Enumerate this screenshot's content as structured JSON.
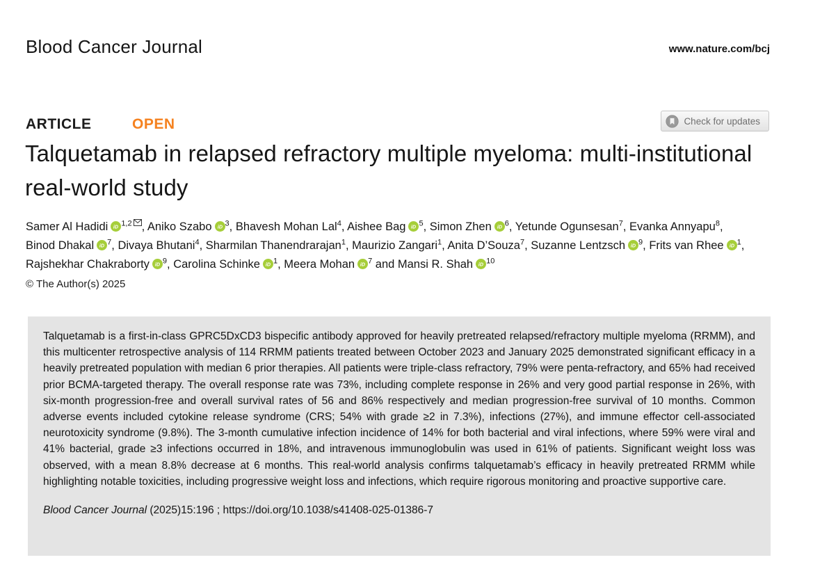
{
  "header": {
    "journal_name": "Blood Cancer Journal",
    "journal_url": "www.nature.com/bcj"
  },
  "article": {
    "type_label": "ARTICLE",
    "open_label": "OPEN",
    "check_updates_label": "Check for updates",
    "title": "Talquetamab in relapsed refractory multiple myeloma: multi-institutional real-world study",
    "copyright": "© The Author(s) 2025"
  },
  "authors": {
    "separator": ", ",
    "last_separator": " and ",
    "list": [
      {
        "name": "Samer Al Hadidi",
        "orcid": true,
        "sup": "1,2",
        "email": true
      },
      {
        "name": "Aniko Szabo",
        "orcid": true,
        "sup": "3",
        "email": false
      },
      {
        "name": "Bhavesh Mohan Lal",
        "orcid": false,
        "sup": "4",
        "email": false
      },
      {
        "name": "Aishee Bag",
        "orcid": true,
        "sup": "5",
        "email": false
      },
      {
        "name": "Simon Zhen",
        "orcid": true,
        "sup": "6",
        "email": false
      },
      {
        "name": "Yetunde Ogunsesan",
        "orcid": false,
        "sup": "7",
        "email": false
      },
      {
        "name": "Evanka Annyapu",
        "orcid": false,
        "sup": "8",
        "email": false
      },
      {
        "name": "Binod Dhakal",
        "orcid": true,
        "sup": "7",
        "email": false
      },
      {
        "name": "Divaya Bhutani",
        "orcid": false,
        "sup": "4",
        "email": false
      },
      {
        "name": "Sharmilan Thanendrarajan",
        "orcid": false,
        "sup": "1",
        "email": false
      },
      {
        "name": "Maurizio Zangari",
        "orcid": false,
        "sup": "1",
        "email": false
      },
      {
        "name": "Anita D’Souza",
        "orcid": false,
        "sup": "7",
        "email": false
      },
      {
        "name": "Suzanne Lentzsch",
        "orcid": true,
        "sup": "9",
        "email": false
      },
      {
        "name": "Frits van Rhee",
        "orcid": true,
        "sup": "1",
        "email": false
      },
      {
        "name": "Rajshekhar Chakraborty",
        "orcid": true,
        "sup": "9",
        "email": false
      },
      {
        "name": "Carolina Schinke",
        "orcid": true,
        "sup": "1",
        "email": false
      },
      {
        "name": "Meera Mohan",
        "orcid": true,
        "sup": "7",
        "email": false
      },
      {
        "name": "Mansi R. Shah",
        "orcid": true,
        "sup": "10",
        "email": false
      }
    ]
  },
  "abstract": {
    "text": "Talquetamab is a first-in-class GPRC5DxCD3 bispecific antibody approved for heavily pretreated relapsed/refractory multiple myeloma (RRMM), and this multicenter retrospective analysis of 114 RRMM patients treated between October 2023 and January 2025 demonstrated significant efficacy in a heavily pretreated population with median 6 prior therapies. All patients were triple-class refractory, 79% were penta-refractory, and 65% had received prior BCMA-targeted therapy. The overall response rate was 73%, including complete response in 26% and very good partial response in 26%, with six-month progression-free and overall survival rates of 56 and 86% respectively and median progression-free survival of 10 months. Common adverse events included cytokine release syndrome (CRS; 54% with grade ≥2 in 7.3%), infections (27%), and immune effector cell-associated neurotoxicity syndrome (9.8%). The 3-month cumulative infection incidence of 14% for both bacterial and viral infections, where 59% were viral and 41% bacterial, grade ≥3 infections occurred in 18%, and intravenous immunoglobulin was used in 61% of patients. Significant weight loss was observed, with a mean 8.8% decrease at 6 months. This real-world analysis confirms talquetamab’s efficacy in heavily pretreated RRMM while highlighting notable toxicities, including progressive weight loss and infections, which require rigorous monitoring and proactive supportive care."
  },
  "citation": {
    "journal": "Blood Cancer Journal",
    "rest": " (2025)15:196 ; ",
    "doi": "https://doi.org/10.1038/s41408-025-01386-7"
  },
  "colors": {
    "open_orange": "#F58220",
    "orcid_green": "#A6CE39",
    "abstract_bg": "#E4E4E4",
    "text": "#1F1F1F"
  }
}
